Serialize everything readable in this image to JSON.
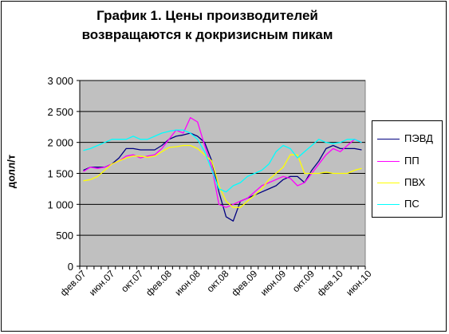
{
  "chart_data": {
    "type": "line",
    "title_lines": [
      "График 1. Цены производителей",
      "возвращаются к докризисным пикам"
    ],
    "ylabel": "долл/т",
    "xlabel": "",
    "ylim": [
      0,
      3000
    ],
    "yticks": [
      "0",
      "500",
      "1 000",
      "1 500",
      "2 000",
      "2 500",
      "3 000"
    ],
    "ytick_values": [
      0,
      500,
      1000,
      1500,
      2000,
      2500,
      3000
    ],
    "x_tick_labels": [
      "фев.07",
      "июн.07",
      "окт.07",
      "фев.08",
      "июн.08",
      "окт.08",
      "фев.09",
      "июн.09",
      "окт.09",
      "фев.10",
      "июн.10"
    ],
    "x_tick_index": [
      0,
      4,
      8,
      12,
      16,
      20,
      24,
      28,
      32,
      36,
      40
    ],
    "grid": "horizontal",
    "legend_position": "right",
    "plot_background": "#c0c0c0",
    "series": [
      {
        "name": "ПЭВД",
        "color": "#000080",
        "values": [
          1550,
          1600,
          1600,
          1600,
          1650,
          1750,
          1900,
          1900,
          1880,
          1880,
          1880,
          1950,
          2050,
          2100,
          2120,
          2150,
          2100,
          2000,
          1700,
          1200,
          800,
          730,
          1050,
          1100,
          1150,
          1200,
          1250,
          1300,
          1400,
          1450,
          1450,
          1350,
          1550,
          1700,
          1900,
          1950,
          1900,
          1900,
          1900,
          1880
        ]
      },
      {
        "name": "ПП",
        "color": "#ff00ff",
        "values": [
          1530,
          1600,
          1580,
          1600,
          1650,
          1700,
          1780,
          1800,
          1750,
          1780,
          1800,
          1900,
          2050,
          2200,
          2150,
          2400,
          2330,
          1950,
          1600,
          1000,
          950,
          1000,
          1050,
          1100,
          1200,
          1300,
          1350,
          1400,
          1450,
          1420,
          1300,
          1350,
          1500,
          1650,
          1800,
          1900,
          1850,
          1950,
          2050,
          2000
        ]
      },
      {
        "name": "ПВХ",
        "color": "#ffff00",
        "values": [
          1380,
          1400,
          1450,
          1550,
          1650,
          1700,
          1750,
          1780,
          1780,
          1760,
          1780,
          1850,
          1920,
          1930,
          1950,
          1950,
          1900,
          1800,
          1700,
          1300,
          1050,
          950,
          950,
          1050,
          1150,
          1250,
          1400,
          1500,
          1600,
          1800,
          1800,
          1500,
          1500,
          1500,
          1520,
          1500,
          1500,
          1500,
          1550,
          1580
        ]
      },
      {
        "name": "ПС",
        "color": "#00ffff",
        "values": [
          1870,
          1900,
          1950,
          2000,
          2050,
          2050,
          2050,
          2100,
          2050,
          2050,
          2100,
          2150,
          2180,
          2200,
          2200,
          2150,
          2050,
          1850,
          1550,
          1250,
          1200,
          1300,
          1350,
          1450,
          1500,
          1550,
          1650,
          1850,
          1950,
          1900,
          1750,
          1850,
          1950,
          2050,
          2000,
          1980,
          2000,
          2050,
          2050,
          2000
        ]
      }
    ]
  }
}
